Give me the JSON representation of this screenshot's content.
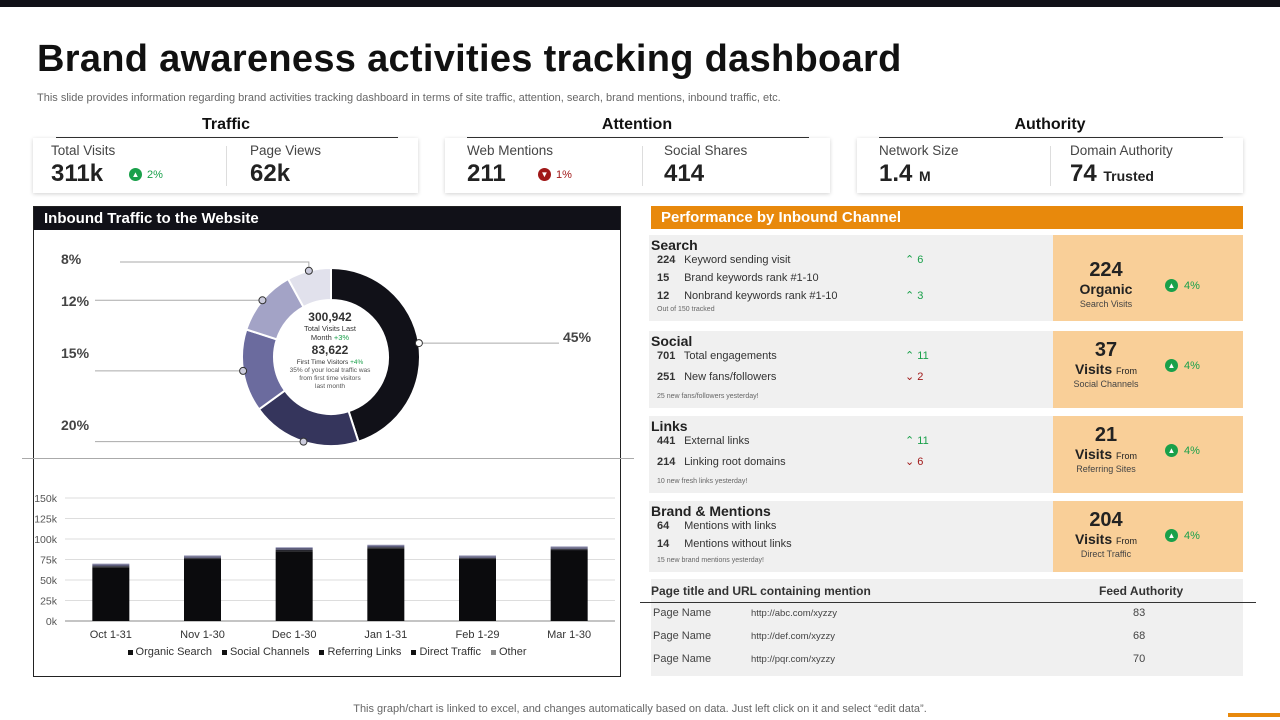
{
  "title": "Brand awareness activities tracking dashboard",
  "subtitle": "This slide provides information regarding brand activities tracking dashboard in terms of site traffic, attention, search, brand mentions, inbound traffic, etc.",
  "kpis": {
    "traffic": {
      "heading": "Traffic",
      "total_visits_label": "Total Visits",
      "total_visits_value": "311k",
      "total_visits_change": "2%",
      "page_views_label": "Page Views",
      "page_views_value": "62k"
    },
    "attention": {
      "heading": "Attention",
      "web_mentions_label": "Web Mentions",
      "web_mentions_value": "211",
      "web_mentions_change": "1%",
      "social_shares_label": "Social Shares",
      "social_shares_value": "414"
    },
    "authority": {
      "heading": "Authority",
      "network_size_label": "Network Size",
      "network_size_value": "1.4",
      "network_size_unit": "M",
      "domain_authority_label": "Domain Authority",
      "domain_authority_value": "74",
      "domain_authority_unit": "Trusted"
    }
  },
  "inbound": {
    "heading": "Inbound Traffic to the Website",
    "center": {
      "total_visits": "300,942",
      "total_visits_label_1": "Total Visits Last",
      "total_visits_label_2": "Month",
      "total_visits_change": "+3%",
      "first_time": "83,622",
      "first_time_label": "First Time Visitors",
      "first_time_change": "+4%",
      "note_1": "35% of your local traffic was",
      "note_2": "from first time visitors",
      "note_3": "last month"
    },
    "donut_labels": [
      "45%",
      "20%",
      "15%",
      "12%",
      "8%"
    ]
  },
  "chart_data": [
    {
      "type": "pie",
      "title": "Inbound Traffic to the Website",
      "categories": [
        "Segment 1",
        "Segment 2",
        "Segment 3",
        "Segment 4",
        "Segment 5"
      ],
      "values": [
        45,
        20,
        15,
        12,
        8
      ],
      "colors": [
        "#111118",
        "#35355c",
        "#6b6b9e",
        "#a3a3c6",
        "#e1e1ec"
      ]
    },
    {
      "type": "bar",
      "stacked": true,
      "categories": [
        "Oct 1-31",
        "Nov 1-30",
        "Dec 1-30",
        "Jan 1-31",
        "Feb 1-29",
        "Mar 1-30"
      ],
      "series": [
        {
          "name": "Organic Search",
          "values": [
            65000,
            75000,
            85000,
            88000,
            75000,
            86000
          ],
          "color": "#0b0b0d"
        },
        {
          "name": "Social Channels",
          "values": [
            1000,
            1000,
            1000,
            1000,
            1000,
            1000
          ],
          "color": "#1a1a20"
        },
        {
          "name": "Referring Links",
          "values": [
            1000,
            1000,
            1000,
            1000,
            1000,
            1000
          ],
          "color": "#2a2a33"
        },
        {
          "name": "Direct Traffic",
          "values": [
            2000,
            2000,
            2000,
            2000,
            2000,
            2000
          ],
          "color": "#5a5a7a"
        },
        {
          "name": "Other",
          "values": [
            1000,
            1000,
            1000,
            1000,
            1000,
            1000
          ],
          "color": "#9a9ab8"
        }
      ],
      "y_ticks": [
        "0k",
        "25k",
        "50k",
        "75k",
        "100k",
        "125k",
        "150k"
      ],
      "ylim": [
        0,
        150000
      ],
      "grid": true,
      "legend": "bottom"
    }
  ],
  "performance": {
    "heading": "Performance by Inbound Channel",
    "channels": [
      {
        "title": "Search",
        "rows": [
          {
            "num": "224",
            "label": "Keyword sending visit",
            "trend": "6",
            "dir": "up"
          },
          {
            "num": "15",
            "label": "Brand keywords rank #1-10",
            "trend": "",
            "dir": ""
          },
          {
            "num": "12",
            "label": "Nonbrand keywords rank #1-10",
            "trend": "3",
            "dir": "up"
          }
        ],
        "note": "Out of 150 tracked",
        "card_value": "224",
        "card_label": "Organic",
        "card_label_small": "",
        "card_sub": "Search Visits",
        "card_change": "4%"
      },
      {
        "title": "Social",
        "rows": [
          {
            "num": "701",
            "label": "Total engagements",
            "trend": "11",
            "dir": "up"
          },
          {
            "num": "251",
            "label": "New fans/followers",
            "trend": "2",
            "dir": "down"
          }
        ],
        "note": "25 new fans/followers yesterday!",
        "card_value": "37",
        "card_label": "Visits",
        "card_label_small": "From",
        "card_sub": "Social Channels",
        "card_change": "4%"
      },
      {
        "title": "Links",
        "rows": [
          {
            "num": "441",
            "label": "External links",
            "trend": "11",
            "dir": "up"
          },
          {
            "num": "214",
            "label": "Linking root domains",
            "trend": "6",
            "dir": "down"
          }
        ],
        "note": "10 new fresh links yesterday!",
        "card_value": "21",
        "card_label": "Visits",
        "card_label_small": "From",
        "card_sub": "Referring Sites",
        "card_change": "4%"
      },
      {
        "title": "Brand & Mentions",
        "rows": [
          {
            "num": "64",
            "label": "Mentions with links",
            "trend": "",
            "dir": ""
          },
          {
            "num": "14",
            "label": "Mentions without links",
            "trend": "",
            "dir": ""
          }
        ],
        "note": "15 new brand mentions yesterday!",
        "card_value": "204",
        "card_label": "Visits",
        "card_label_small": "From",
        "card_sub": "Direct Traffic",
        "card_change": "4%"
      }
    ]
  },
  "mentions": {
    "col1": "Page title and URL  containing mention",
    "col2": "Feed Authority",
    "rows": [
      {
        "name": "Page Name",
        "url": "http://abc.com/xyzzy",
        "score": "83"
      },
      {
        "name": "Page Name",
        "url": "http://def.com/xyzzy",
        "score": "68"
      },
      {
        "name": "Page Name",
        "url": "http://pqr.com/xyzzy",
        "score": "70"
      }
    ]
  },
  "footer": "This graph/chart is linked to excel,  and changes automatically based on data. Just left click on it and select “edit data”.",
  "colors": {
    "accent": "#e8890c",
    "dark": "#111118",
    "card": "#f9cf98",
    "up": "#19a04a",
    "down": "#a01818"
  }
}
